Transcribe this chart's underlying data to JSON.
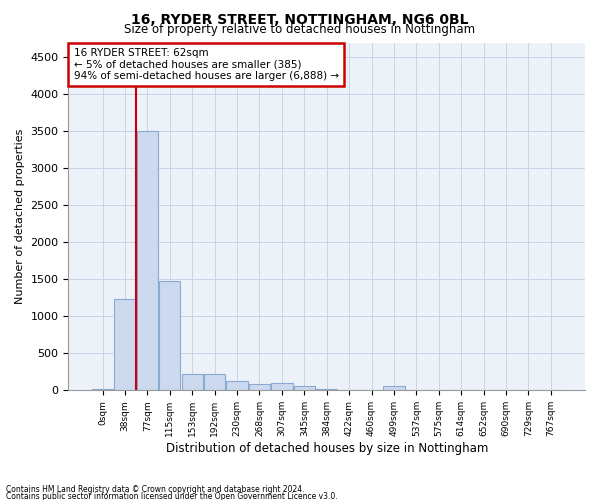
{
  "title1": "16, RYDER STREET, NOTTINGHAM, NG6 0BL",
  "title2": "Size of property relative to detached houses in Nottingham",
  "xlabel": "Distribution of detached houses by size in Nottingham",
  "ylabel": "Number of detached properties",
  "bar_color": "#ccd9ee",
  "bar_edgecolor": "#8aaad4",
  "bar_linewidth": 0.8,
  "grid_color": "#c8d4e8",
  "bg_color": "#edf1f8",
  "annotation_box_color": "#cc0000",
  "vline_color": "#cc0000",
  "vline_x": 1.5,
  "annotation_text_line1": "16 RYDER STREET: 62sqm",
  "annotation_text_line2": "← 5% of detached houses are smaller (385)",
  "annotation_text_line3": "94% of semi-detached houses are larger (6,888) →",
  "footer1": "Contains HM Land Registry data © Crown copyright and database right 2024.",
  "footer2": "Contains public sector information licensed under the Open Government Licence v3.0.",
  "categories": [
    "0sqm",
    "38sqm",
    "77sqm",
    "115sqm",
    "153sqm",
    "192sqm",
    "230sqm",
    "268sqm",
    "307sqm",
    "345sqm",
    "384sqm",
    "422sqm",
    "460sqm",
    "499sqm",
    "537sqm",
    "575sqm",
    "614sqm",
    "652sqm",
    "690sqm",
    "729sqm",
    "767sqm"
  ],
  "values": [
    15,
    1230,
    3500,
    1480,
    220,
    220,
    120,
    80,
    105,
    55,
    15,
    0,
    0,
    55,
    10,
    5,
    5,
    0,
    0,
    0,
    0
  ],
  "ylim": [
    0,
    4700
  ],
  "yticks": [
    0,
    500,
    1000,
    1500,
    2000,
    2500,
    3000,
    3500,
    4000,
    4500
  ]
}
